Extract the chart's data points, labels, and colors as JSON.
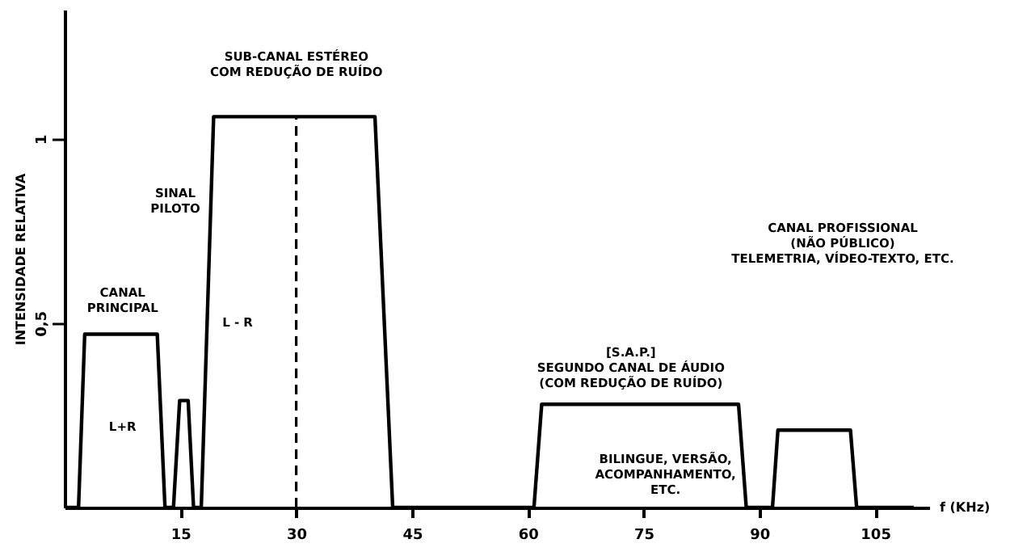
{
  "chart_data": {
    "type": "line",
    "xlabel": "f (KHz)",
    "ylabel": "INTENSIDADE RELATIVA",
    "x": [
      0,
      1.8,
      2.6,
      12,
      13,
      14.1,
      14.9,
      16,
      16.7,
      17.7,
      19.3,
      40.2,
      42.5,
      60.8,
      61.8,
      87.3,
      88.3,
      91.7,
      92.4,
      101.8,
      102.6,
      110
    ],
    "series": [
      {
        "color": "#000000",
        "values": [
          0,
          0,
          0.47,
          0.47,
          0,
          0,
          0.29,
          0.29,
          0,
          0,
          1.06,
          1.06,
          0,
          0,
          0.28,
          0.28,
          0,
          0,
          0.21,
          0.21,
          0,
          0
        ]
      }
    ],
    "xlim": [
      0,
      112
    ],
    "xticks": [
      15,
      30,
      45,
      60,
      75,
      90,
      105
    ],
    "ylim": [
      0,
      1.35
    ],
    "yticks": [
      {
        "value": 0.5,
        "label": "0,5"
      },
      1
    ],
    "line_style": "solid",
    "marker": "none",
    "ref_lines": [
      {
        "axis": "x",
        "value": 30,
        "line_style": "dashed",
        "color": "#000000"
      }
    ],
    "annotations": [
      "CANAL\nPRINCIPAL",
      "L+R",
      "SINAL\nPILOTO",
      "L - R",
      "SUB-CANAL ESTÉREO\nCOM REDUÇÃO DE RUÍDO",
      "[S.A.P.]\nSEGUNDO CANAL DE ÁUDIO\n(COM REDUÇÃO DE RUÍDO)",
      "BILINGUE, VERSÃO,\nACOMPANHAMENTO,\nETC.",
      "CANAL PROFISSIONAL\n(NÃO PÚBLICO)\nTELEMETRIA, VÍDEO-TEXTO, ETC."
    ]
  }
}
